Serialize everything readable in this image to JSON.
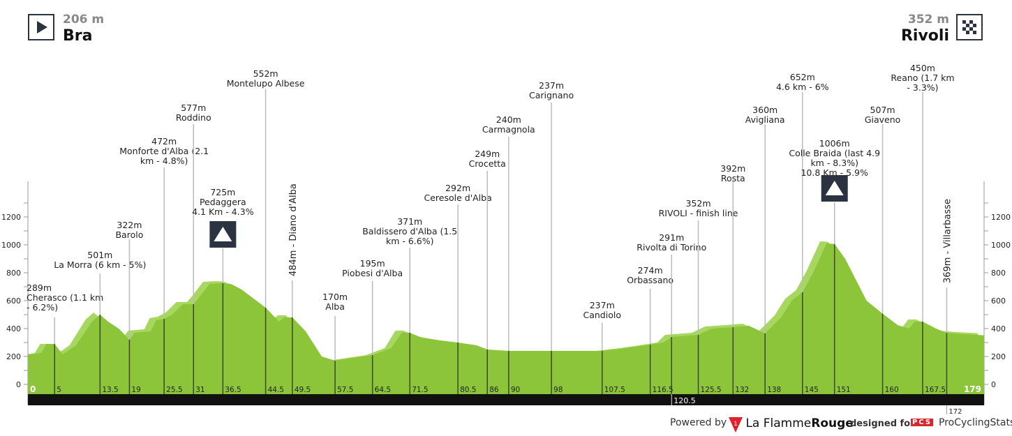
{
  "start": {
    "altitude": "206 m",
    "city": "Bra",
    "icon": "play-icon"
  },
  "finish": {
    "altitude": "352 m",
    "city": "Rivoli",
    "icon": "checkered-flag-icon"
  },
  "footer": {
    "powered": "Powered by",
    "brand1": "La Flamme",
    "brand2": "Rouge",
    "designed": "designed for",
    "pcs": "PCS",
    "pcs_name": "ProCyclingStats"
  },
  "chart_data": {
    "type": "area",
    "xlabel": "",
    "ylabel": "",
    "xlim": [
      0,
      179
    ],
    "ylim": [
      0,
      1400
    ],
    "yticks": [
      0,
      200,
      400,
      600,
      800,
      1000,
      1200
    ],
    "colors": {
      "profile": "#8cc43a",
      "climb": "#a6d75e",
      "bar": "#111111",
      "icon": "#2b3340"
    },
    "profile": [
      [
        0,
        215
      ],
      [
        2.5,
        225
      ],
      [
        3.5,
        290
      ],
      [
        5,
        290
      ],
      [
        6.5,
        215
      ],
      [
        9,
        280
      ],
      [
        12,
        450
      ],
      [
        13.5,
        500
      ],
      [
        15,
        450
      ],
      [
        17,
        400
      ],
      [
        19,
        320
      ],
      [
        20,
        370
      ],
      [
        23,
        380
      ],
      [
        24,
        460
      ],
      [
        25.5,
        470
      ],
      [
        27,
        500
      ],
      [
        29,
        575
      ],
      [
        31,
        575
      ],
      [
        32,
        620
      ],
      [
        34,
        720
      ],
      [
        36.5,
        725
      ],
      [
        38,
        720
      ],
      [
        40,
        680
      ],
      [
        44.5,
        550
      ],
      [
        47,
        450
      ],
      [
        48,
        480
      ],
      [
        49.5,
        480
      ],
      [
        52,
        380
      ],
      [
        55,
        200
      ],
      [
        57.5,
        170
      ],
      [
        61,
        190
      ],
      [
        64.5,
        210
      ],
      [
        68,
        260
      ],
      [
        70,
        370
      ],
      [
        71.5,
        370
      ],
      [
        74,
        330
      ],
      [
        80.5,
        300
      ],
      [
        84,
        280
      ],
      [
        86,
        250
      ],
      [
        90,
        240
      ],
      [
        98,
        240
      ],
      [
        107.5,
        240
      ],
      [
        112,
        260
      ],
      [
        116.5,
        285
      ],
      [
        119,
        300
      ],
      [
        120.5,
        340
      ],
      [
        125.5,
        355
      ],
      [
        128,
        400
      ],
      [
        132,
        410
      ],
      [
        135,
        420
      ],
      [
        138,
        365
      ],
      [
        141,
        480
      ],
      [
        143,
        600
      ],
      [
        145,
        660
      ],
      [
        147,
        800
      ],
      [
        149.5,
        1010
      ],
      [
        151,
        1006
      ],
      [
        153,
        900
      ],
      [
        157,
        600
      ],
      [
        160,
        507
      ],
      [
        163,
        420
      ],
      [
        165,
        400
      ],
      [
        166,
        450
      ],
      [
        167.5,
        450
      ],
      [
        170,
        400
      ],
      [
        172,
        369
      ],
      [
        175,
        360
      ],
      [
        179,
        352
      ]
    ],
    "km_labels": [
      "0",
      "5",
      "13.5",
      "19",
      "25.5",
      "31",
      "36.5",
      "44.5",
      "49.5",
      "57.5",
      "64.5",
      "71.5",
      "80.5",
      "86",
      "90",
      "98",
      "107.5",
      "116.5",
      "120.5",
      "125.5",
      "132",
      "138",
      "145",
      "151",
      "160",
      "167.5",
      "172",
      "179"
    ],
    "markers": [
      {
        "km": 5,
        "lines": [
          "289m",
          "Cherasco (1.1 km",
          "- 6.2%)"
        ]
      },
      {
        "km": 13.5,
        "lines": [
          "501m",
          "La Morra (6 km - 5%)"
        ]
      },
      {
        "km": 19,
        "lines": [
          "322m",
          "Barolo"
        ]
      },
      {
        "km": 25.5,
        "lines": [
          "472m",
          "Monforte d'Alba (2.1",
          "km - 4.8%)"
        ]
      },
      {
        "km": 31,
        "lines": [
          "577m",
          "Roddino"
        ]
      },
      {
        "km": 36.5,
        "lines": [
          "725m",
          "Pedaggera",
          "4.1 Km - 4.3%"
        ],
        "climb": true
      },
      {
        "km": 44.5,
        "lines": [
          "552m",
          "Montelupo Albese"
        ]
      },
      {
        "km": 49.5,
        "lines": [
          "484m - Diano d'Alba"
        ],
        "vertical": true
      },
      {
        "km": 57.5,
        "lines": [
          "170m",
          "Alba"
        ]
      },
      {
        "km": 64.5,
        "lines": [
          "195m",
          "Piobesi d'Alba"
        ]
      },
      {
        "km": 71.5,
        "lines": [
          "371m",
          "Baldissero d'Alba (1.5",
          "km - 6.6%)"
        ]
      },
      {
        "km": 80.5,
        "lines": [
          "292m",
          "Ceresole d'Alba"
        ]
      },
      {
        "km": 86,
        "lines": [
          "249m",
          "Crocetta"
        ]
      },
      {
        "km": 90,
        "lines": [
          "240m",
          "Carmagnola"
        ]
      },
      {
        "km": 98,
        "lines": [
          "237m",
          "Carignano"
        ]
      },
      {
        "km": 107.5,
        "lines": [
          "237m",
          "Candiolo"
        ]
      },
      {
        "km": 116.5,
        "lines": [
          "274m",
          "Orbassano"
        ]
      },
      {
        "km": 120.5,
        "lines": [
          "291m",
          "Rivolta di Torino"
        ]
      },
      {
        "km": 125.5,
        "lines": [
          "352m",
          "RIVOLI - finish line"
        ]
      },
      {
        "km": 132,
        "lines": [
          "392m",
          "Rosta"
        ]
      },
      {
        "km": 138,
        "lines": [
          "360m",
          "Avigliana"
        ]
      },
      {
        "km": 145,
        "lines": [
          "652m",
          "4.6 km - 6%"
        ]
      },
      {
        "km": 151,
        "lines": [
          "1006m",
          "Colle Braida (last 4.9",
          "km - 8.3%)",
          "10.8 Km - 5.9%"
        ],
        "climb": true
      },
      {
        "km": 160,
        "lines": [
          "507m",
          "Giaveno"
        ]
      },
      {
        "km": 167.5,
        "lines": [
          "450m",
          "Reano (1.7 km",
          "- 3.3%)"
        ]
      },
      {
        "km": 172,
        "lines": [
          "369m - Villarbasse"
        ],
        "vertical": true
      }
    ]
  }
}
